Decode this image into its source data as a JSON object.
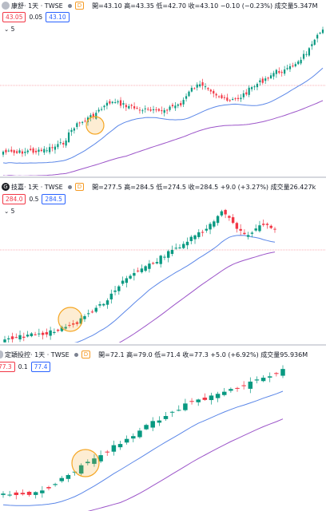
{
  "colors": {
    "up": "#089981",
    "down": "#f23645",
    "ma_fast": "#5b87e8",
    "ma_slow": "#9c55c9",
    "price_line": "#f23645",
    "highlight": "#f5a623"
  },
  "panels": [
    {
      "name": "康舒",
      "timeframe_exchange": " · 1天 · TWSE",
      "badge": "D",
      "ohlc": "開=43.10 高=43.35 低=42.70 收=43.10 −0.10 (−0.23%) 成交量5.347M",
      "sell": "43.05",
      "spread": "0.05",
      "buy": "43.10",
      "ma_label": "5",
      "icon": "logo-icon"
    },
    {
      "name": "技嘉",
      "timeframe_exchange": " · 1天 · TWSE",
      "badge": "D",
      "ohlc": "開=277.5 高=284.5 低=274.5 收=284.5 +9.0 (+3.27%) 成交量26.427k",
      "sell": "284.0",
      "spread": "0.5",
      "buy": "284.5",
      "ma_label": "5",
      "icon": "gigabyte-logo-icon"
    },
    {
      "name": "定穎投控",
      "timeframe_exchange": " · 1天 · TWSE",
      "badge": "D",
      "ohlc": "開=72.1 高=79.0 低=71.4 收=77.3 +5.0 (+6.92%) 成交量95.936M",
      "sell": "77.3",
      "spread": "0.1",
      "buy": "77.4",
      "ma_label": "",
      "icon": "logo-icon"
    }
  ]
}
